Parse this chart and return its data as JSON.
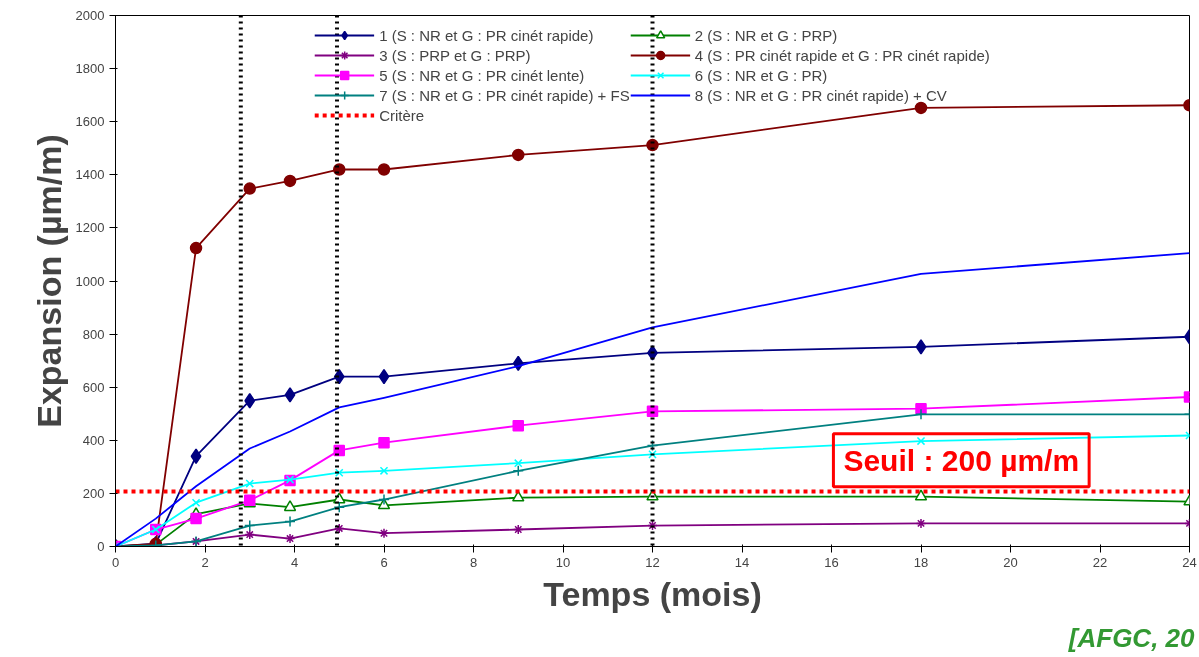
{
  "chart_data": {
    "type": "line",
    "xlabel": "Temps (mois)",
    "ylabel": "Expansion (µm/m)",
    "x": [
      0,
      0.9,
      1.8,
      3,
      3.9,
      5,
      6,
      9,
      12,
      18,
      24
    ],
    "xlim": [
      0,
      24
    ],
    "ylim": [
      0,
      2000
    ],
    "xticks": [
      0,
      2,
      4,
      6,
      8,
      10,
      12,
      14,
      16,
      18,
      20,
      22,
      24
    ],
    "yticks": [
      0,
      200,
      400,
      600,
      800,
      1000,
      1200,
      1400,
      1600,
      1800,
      2000
    ],
    "grid": false,
    "legend": "top",
    "line_style": "solid",
    "series": [
      {
        "name": "1 (S : NR et G : PR cinét rapide)",
        "color": "#000080",
        "marker": "diamond",
        "values": [
          0,
          11,
          340,
          549,
          571,
          640,
          640,
          690,
          729,
          752,
          790
        ]
      },
      {
        "name": "2 (S : NR et G : PRP)",
        "color": "#008000",
        "marker": "triangle",
        "values": [
          0,
          7,
          122,
          162,
          148,
          177,
          155,
          184,
          188,
          188,
          169
        ]
      },
      {
        "name": "3 (S : PRP et G : PRP)",
        "color": "#800080",
        "marker": "cross",
        "values": [
          0,
          4,
          19,
          45,
          30,
          68,
          50,
          64,
          79,
          87,
          87
        ]
      },
      {
        "name": "4 (S : PR cinét rapide et G : PR cinét rapide)",
        "color": "#800000",
        "marker": "circle",
        "values": [
          0,
          10,
          1124,
          1348,
          1377,
          1420,
          1420,
          1475,
          1512,
          1652,
          1662
        ]
      },
      {
        "name": "5 (S : NR et G : PR cinét lente)",
        "color": "#ff00ff",
        "marker": "square",
        "values": [
          0,
          64,
          105,
          174,
          249,
          362,
          391,
          455,
          509,
          519,
          563
        ]
      },
      {
        "name": "6 (S : NR et G : PR)",
        "color": "#00ffff",
        "marker": "x",
        "values": [
          0,
          64,
          165,
          237,
          252,
          278,
          285,
          314,
          347,
          397,
          418
        ]
      },
      {
        "name": "7 (S : NR et G : PR cinét rapide) + FS",
        "color": "#008080",
        "marker": "cross",
        "values": [
          0,
          4,
          19,
          79,
          94,
          148,
          177,
          285,
          380,
          498,
          498
        ]
      },
      {
        "name": "8 (S : NR et G : PR cinét rapide) + CV",
        "color": "#0000ff",
        "marker": "none",
        "values": [
          0,
          105,
          227,
          369,
          433,
          524,
          560,
          679,
          825,
          1027,
          1105
        ]
      },
      {
        "name": "Critère",
        "color": "#ff0000",
        "marker": "none",
        "line_style": "dotted",
        "x": [
          0,
          24
        ],
        "values": [
          207,
          207
        ]
      }
    ],
    "ref_lines": [
      {
        "axis": "x",
        "value": 2.8,
        "label": null,
        "color": "#000000",
        "line_style": "dotted"
      },
      {
        "axis": "x",
        "value": 4.95,
        "label": null,
        "color": "#000000",
        "line_style": "dotted"
      },
      {
        "axis": "x",
        "value": 12,
        "label": null,
        "color": "#000000",
        "line_style": "dotted"
      }
    ],
    "annotations": [
      "Seuil : 200 µm/m",
      "[AFGC, 20"
    ]
  }
}
